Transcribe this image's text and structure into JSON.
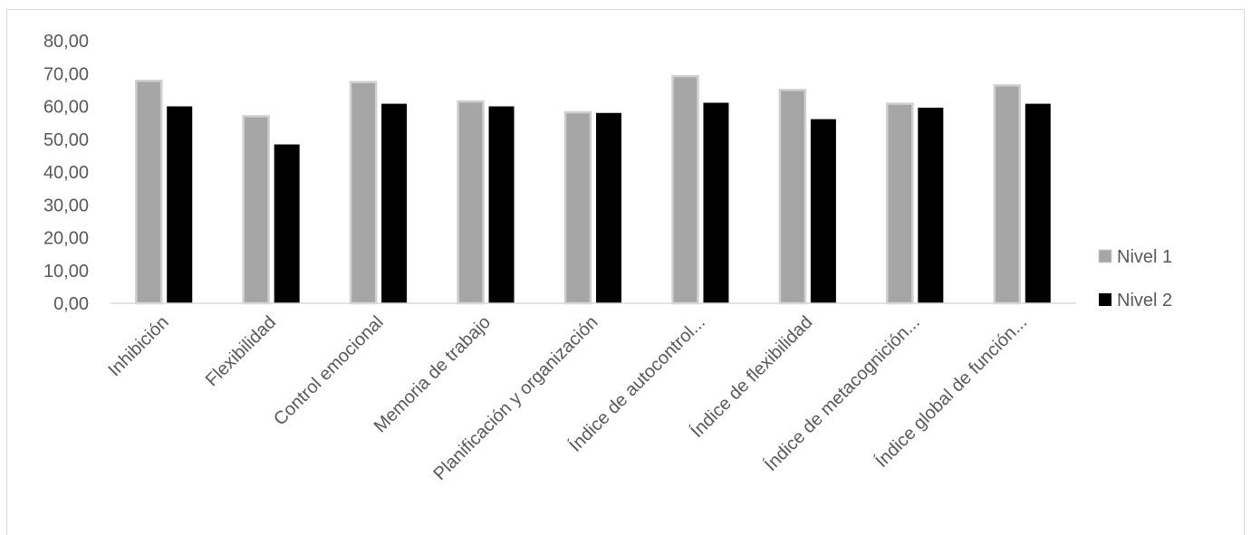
{
  "chart_data": {
    "type": "bar",
    "categories": [
      "Inhibición",
      "Flexibilidad",
      "Control emocional",
      "Memoria de trabajo",
      "Planificación y organización",
      "Índice de autocontrol...",
      "Índice de flexibilidad",
      "Índice de metacognición...",
      "Índice global de función..."
    ],
    "series": [
      {
        "name": "Nivel 1",
        "color": "#a6a6a6",
        "values": [
          67.8,
          57.0,
          67.4,
          61.5,
          58.2,
          69.2,
          65.0,
          60.8,
          66.4
        ]
      },
      {
        "name": "Nivel 2",
        "color": "#000000",
        "values": [
          60.0,
          48.4,
          60.8,
          60.0,
          58.0,
          61.1,
          56.1,
          59.6,
          60.8
        ]
      }
    ],
    "yticks": [
      "0,00",
      "10,00",
      "20,00",
      "30,00",
      "40,00",
      "50,00",
      "60,00",
      "70,00",
      "80,00"
    ],
    "ylim": [
      0,
      80
    ],
    "title": "",
    "xlabel": "",
    "ylabel": "",
    "grid": false,
    "legend_position": "right"
  }
}
